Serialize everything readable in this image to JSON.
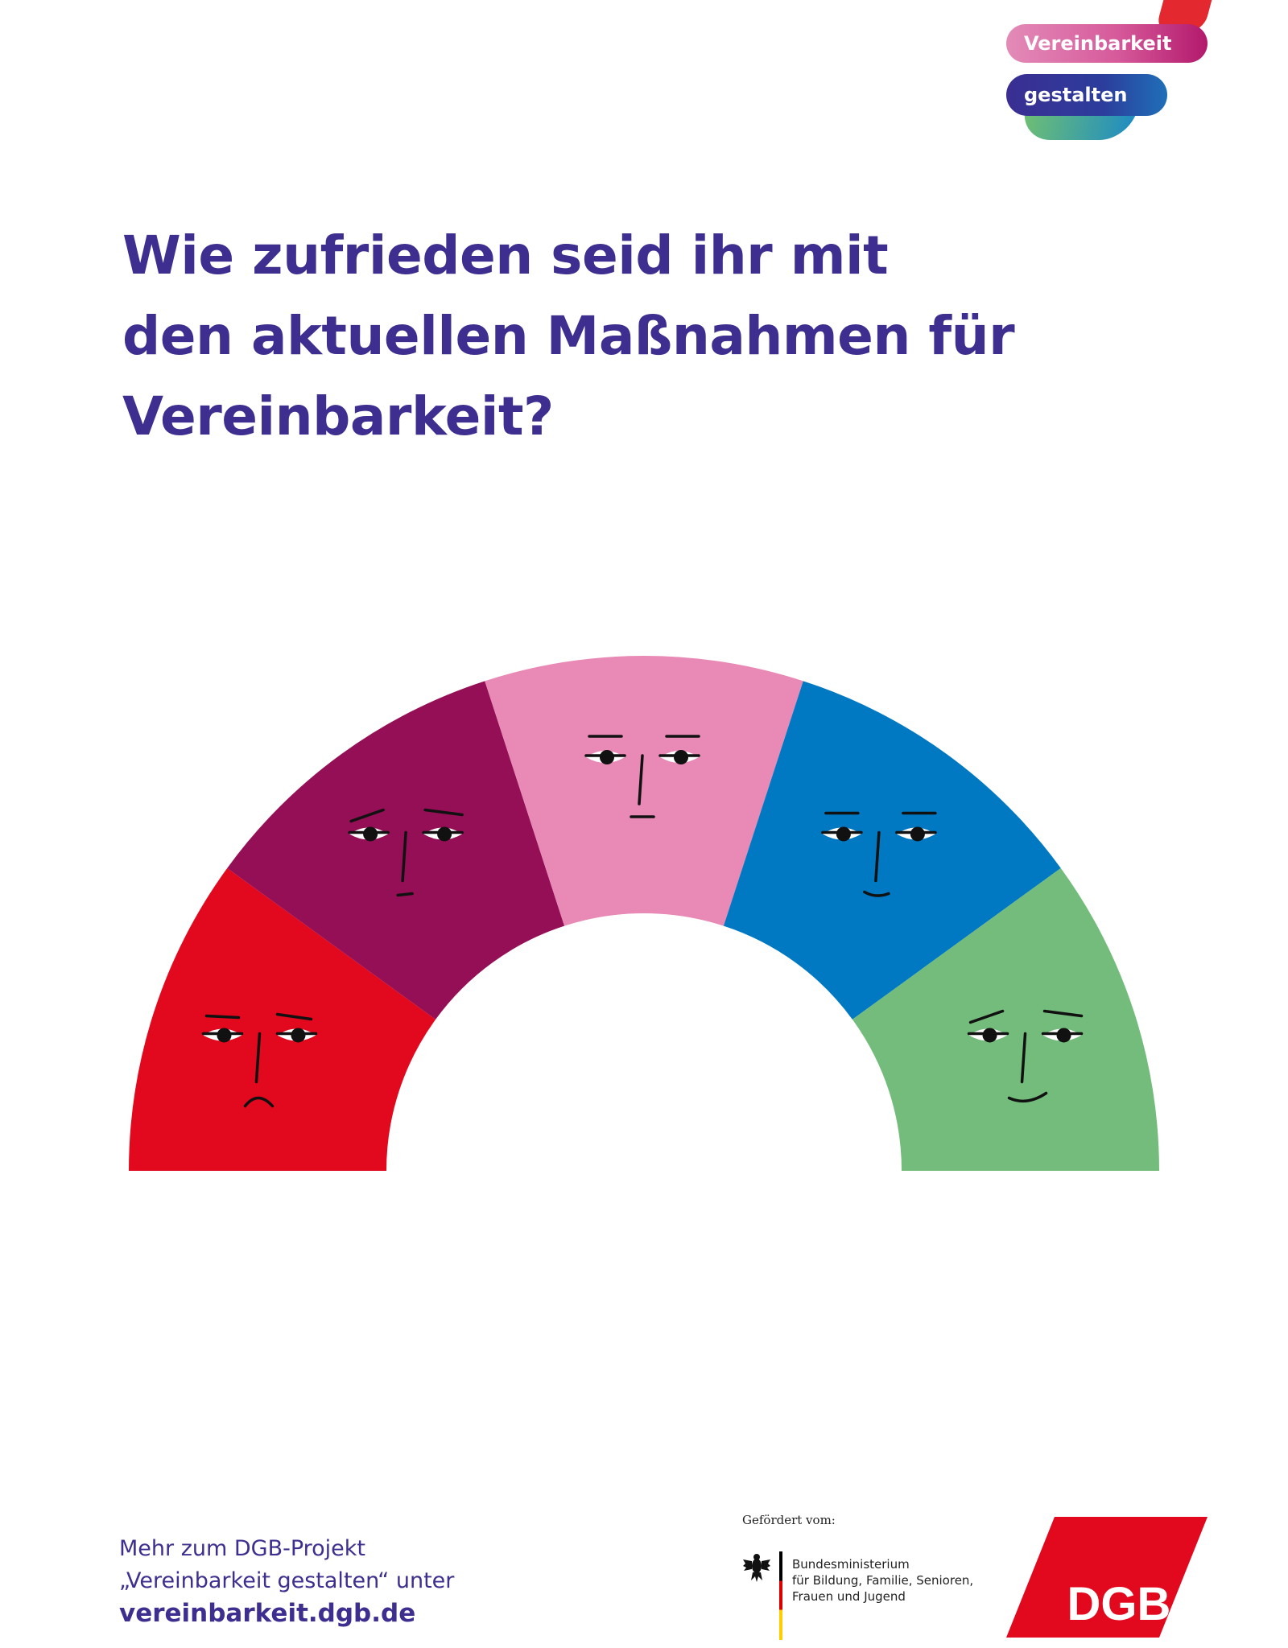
{
  "logo": {
    "line1": "Vereinbarkeit",
    "line2": "gestalten"
  },
  "title": {
    "line1": "Wie zufrieden seid ihr mit",
    "line2": "den aktuellen Maßnahmen für",
    "line3": "Vereinbarkeit?"
  },
  "scale": {
    "segments": [
      {
        "color": "#e2081d",
        "mood": "unhappy-face"
      },
      {
        "color": "#950f56",
        "mood": "skeptical-face"
      },
      {
        "color": "#e889b6",
        "mood": "neutral-face"
      },
      {
        "color": "#0079c2",
        "mood": "content-face"
      },
      {
        "color": "#74bc7c",
        "mood": "happy-face"
      }
    ]
  },
  "footer": {
    "line1": "Mehr zum DGB-Projekt",
    "line2": "„Vereinbarkeit gestalten“ unter",
    "url": "vereinbarkeit.dgb.de"
  },
  "sponsor": {
    "funded_label": "Gefördert vom:",
    "ministry_line1": "Bundesministerium",
    "ministry_line2": "für Bildung, Familie, Senioren,",
    "ministry_line3": "Frauen und Jugend"
  },
  "dgb_logo": {
    "text": "DGB",
    "color": "#e2081d"
  }
}
